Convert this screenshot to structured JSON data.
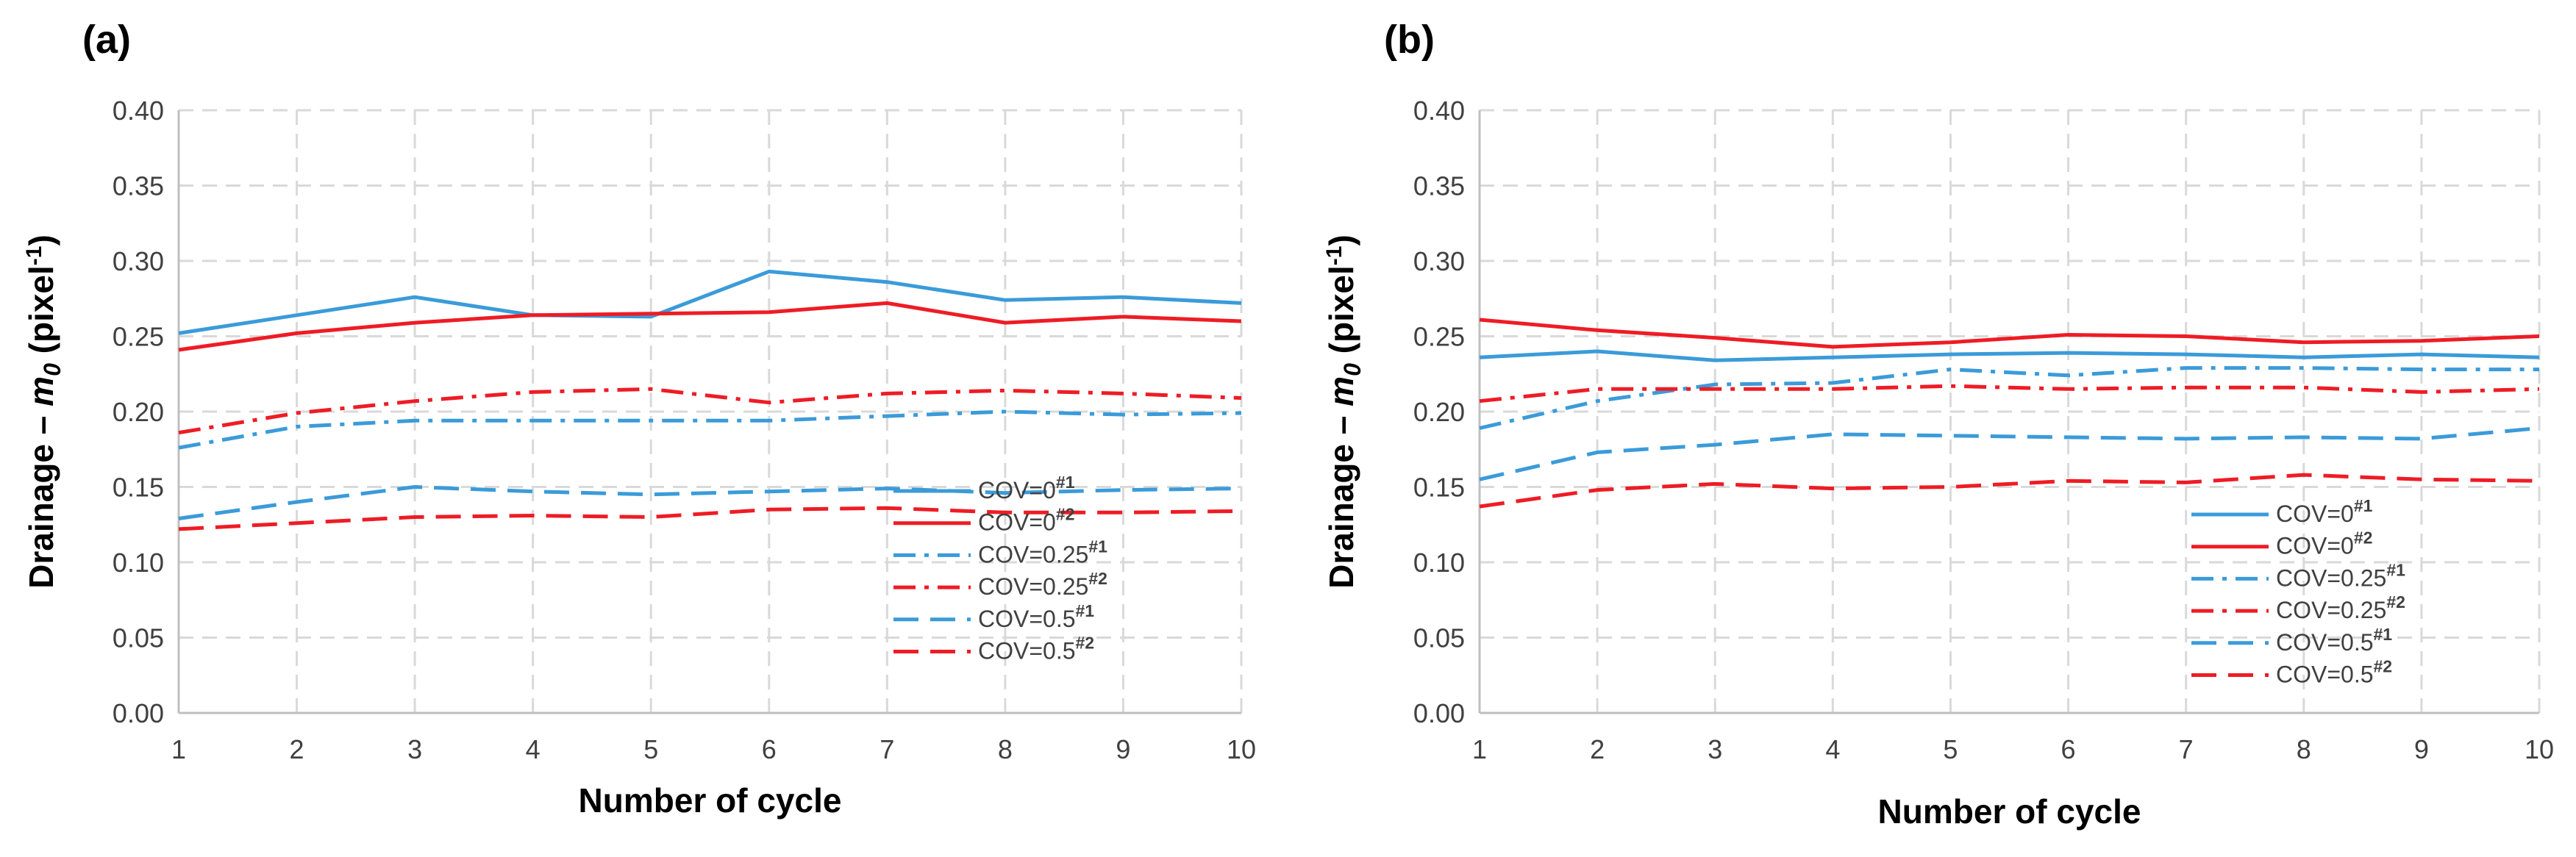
{
  "chart_data": [
    {
      "type": "line",
      "panel_label": "(a)",
      "xlabel": "Number of cycle",
      "ylabel": {
        "prefix": "Drainage – ",
        "var": "m",
        "sub": "0",
        "unit_open": " (pixel",
        "unit_exp": "-1",
        "unit_close": ")"
      },
      "x": [
        1,
        2,
        3,
        4,
        5,
        6,
        7,
        8,
        9,
        10
      ],
      "xticks": [
        "1",
        "2",
        "3",
        "4",
        "5",
        "6",
        "7",
        "8",
        "9",
        "10"
      ],
      "ylim": [
        0,
        0.4
      ],
      "yticks": [
        "0.00",
        "0.05",
        "0.10",
        "0.15",
        "0.20",
        "0.25",
        "0.30",
        "0.35",
        "0.40"
      ],
      "grid": true,
      "legend_position": "bottom-right",
      "series": [
        {
          "name": "COV=0",
          "sup": "#1",
          "color": "#3b9bd9",
          "dash": "solid",
          "values": [
            0.252,
            0.264,
            0.276,
            0.264,
            0.263,
            0.293,
            0.286,
            0.274,
            0.276,
            0.272
          ]
        },
        {
          "name": "COV=0",
          "sup": "#2",
          "color": "#ee1c25",
          "dash": "solid",
          "values": [
            0.241,
            0.252,
            0.259,
            0.264,
            0.265,
            0.266,
            0.272,
            0.259,
            0.263,
            0.26
          ]
        },
        {
          "name": "COV=0.25",
          "sup": "#1",
          "color": "#3b9bd9",
          "dash": "dashdot",
          "values": [
            0.176,
            0.19,
            0.194,
            0.194,
            0.194,
            0.194,
            0.197,
            0.2,
            0.198,
            0.199
          ]
        },
        {
          "name": "COV=0.25",
          "sup": "#2",
          "color": "#ee1c25",
          "dash": "dashdot",
          "values": [
            0.186,
            0.199,
            0.207,
            0.213,
            0.215,
            0.206,
            0.212,
            0.214,
            0.212,
            0.209
          ]
        },
        {
          "name": "COV=0.5",
          "sup": "#1",
          "color": "#3b9bd9",
          "dash": "dash",
          "values": [
            0.129,
            0.14,
            0.15,
            0.147,
            0.145,
            0.147,
            0.149,
            0.146,
            0.148,
            0.149
          ]
        },
        {
          "name": "COV=0.5",
          "sup": "#2",
          "color": "#ee1c25",
          "dash": "dash",
          "values": [
            0.122,
            0.126,
            0.13,
            0.131,
            0.13,
            0.135,
            0.136,
            0.133,
            0.133,
            0.134
          ]
        }
      ]
    },
    {
      "type": "line",
      "panel_label": "(b)",
      "xlabel": "Number of cycle",
      "ylabel": {
        "prefix": "Drainage – ",
        "var": "m",
        "sub": "0",
        "unit_open": " (pixel",
        "unit_exp": "-1",
        "unit_close": ")"
      },
      "x": [
        1,
        2,
        3,
        4,
        5,
        6,
        7,
        8,
        9,
        10
      ],
      "xticks": [
        "1",
        "2",
        "3",
        "4",
        "5",
        "6",
        "7",
        "8",
        "9",
        "10"
      ],
      "ylim": [
        0,
        0.4
      ],
      "yticks": [
        "0.00",
        "0.05",
        "0.10",
        "0.15",
        "0.20",
        "0.25",
        "0.30",
        "0.35",
        "0.40"
      ],
      "grid": true,
      "legend_position": "bottom-right",
      "series": [
        {
          "name": "COV=0",
          "sup": "#1",
          "color": "#3b9bd9",
          "dash": "solid",
          "values": [
            0.236,
            0.24,
            0.234,
            0.236,
            0.238,
            0.239,
            0.238,
            0.236,
            0.238,
            0.236
          ]
        },
        {
          "name": "COV=0",
          "sup": "#2",
          "color": "#ee1c25",
          "dash": "solid",
          "values": [
            0.261,
            0.254,
            0.249,
            0.243,
            0.246,
            0.251,
            0.25,
            0.246,
            0.247,
            0.25
          ]
        },
        {
          "name": "COV=0.25",
          "sup": "#1",
          "color": "#3b9bd9",
          "dash": "dashdot",
          "values": [
            0.189,
            0.207,
            0.218,
            0.219,
            0.228,
            0.224,
            0.229,
            0.229,
            0.228,
            0.228
          ]
        },
        {
          "name": "COV=0.25",
          "sup": "#2",
          "color": "#ee1c25",
          "dash": "dashdot",
          "values": [
            0.207,
            0.215,
            0.215,
            0.215,
            0.217,
            0.215,
            0.216,
            0.216,
            0.213,
            0.215
          ]
        },
        {
          "name": "COV=0.5",
          "sup": "#1",
          "color": "#3b9bd9",
          "dash": "dash",
          "values": [
            0.155,
            0.173,
            0.178,
            0.185,
            0.184,
            0.183,
            0.182,
            0.183,
            0.182,
            0.189
          ]
        },
        {
          "name": "COV=0.5",
          "sup": "#2",
          "color": "#ee1c25",
          "dash": "dash",
          "values": [
            0.137,
            0.148,
            0.152,
            0.149,
            0.15,
            0.154,
            0.153,
            0.158,
            0.155,
            0.154
          ]
        }
      ]
    }
  ]
}
